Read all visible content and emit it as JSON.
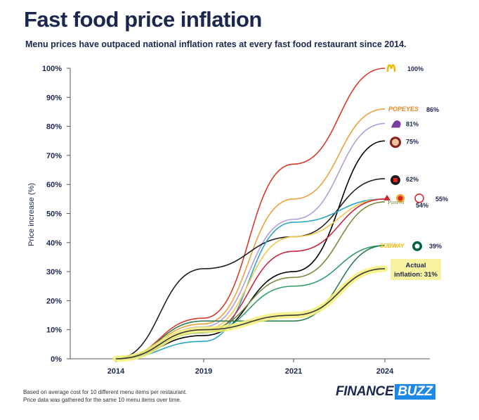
{
  "title": "Fast food price inflation",
  "subtitle": "Menu prices have outpaced national inflation rates at every fast food restaurant since 2014.",
  "footnote": {
    "line1": "Based on average cost for 10 different menu items per restaurant.",
    "line2": "Price data was gathered for the same 10 menu items over time."
  },
  "brand": {
    "part1": "FINANCE",
    "part2": "BUZZ"
  },
  "chart_data": {
    "type": "line",
    "title": "Fast food price inflation",
    "ylabel": "Price increase (%)",
    "xlabel": "",
    "x": [
      "2014",
      "2019",
      "2021",
      "2024"
    ],
    "ylim": [
      0,
      100
    ],
    "yticks": [
      "0%",
      "10%",
      "20%",
      "30%",
      "40%",
      "50%",
      "60%",
      "70%",
      "80%",
      "90%",
      "100%"
    ],
    "grid": false,
    "series": [
      {
        "color": "#d93a2b",
        "values": [
          0,
          14,
          67,
          100
        ],
        "label": "100%",
        "logo": "McDonald's",
        "logo_text": ""
      },
      {
        "color": "#f0a03c",
        "values": [
          0,
          12,
          55,
          86
        ],
        "label": "86%",
        "logo": "Popeyes",
        "logo_text": "POPEYES"
      },
      {
        "color": "#b39ddb",
        "values": [
          0,
          11,
          48,
          81
        ],
        "label": "81%",
        "logo": "Taco Bell",
        "logo_text": ""
      },
      {
        "color": "#000000",
        "values": [
          0,
          8,
          30,
          75
        ],
        "label": "75%",
        "logo": "Chipotle",
        "logo_text": ""
      },
      {
        "color": "#222222",
        "values": [
          0,
          31,
          42,
          62
        ],
        "label": "62%",
        "logo": "Jack in the Box",
        "logo_text": ""
      },
      {
        "color": "#2aa7c9",
        "values": [
          0,
          6,
          47,
          55
        ],
        "label": "55%",
        "logo": "Arby's, Burger King, Wendy's",
        "logo_text": ""
      },
      {
        "color": "#f2c94c",
        "values": [
          0,
          10,
          42,
          55
        ],
        "label": "55%",
        "logo": "Arby's, Burger King, Wendy's",
        "logo_text": ""
      },
      {
        "color": "#c62840",
        "values": [
          0,
          9,
          37,
          55
        ],
        "label": "55%",
        "logo": "Arby's, Burger King, Wendy's",
        "logo_text": ""
      },
      {
        "color": "#7a8c3a",
        "values": [
          0,
          10,
          28,
          54
        ],
        "label": "54%",
        "logo": "Panera",
        "logo_text": "Panera"
      },
      {
        "color": "#2e9e6a",
        "values": [
          0,
          9,
          25,
          39
        ],
        "label": "39%",
        "logo": "Subway, Starbucks",
        "logo_text": "SUBWAY"
      },
      {
        "color": "#2e7d50",
        "values": [
          0,
          13,
          13,
          39
        ],
        "label": "39%",
        "logo": "Subway, Starbucks",
        "logo_text": "SUBWAY"
      },
      {
        "color": "#3a3a3a",
        "values": [
          0,
          10,
          15,
          31
        ],
        "label": "31%",
        "highlight": "#f5f07a",
        "logo": "",
        "logo_text": ""
      }
    ],
    "annotation": {
      "line1": "Actual",
      "line2": "inflation: 31%",
      "background": "#f8f3a0"
    }
  }
}
